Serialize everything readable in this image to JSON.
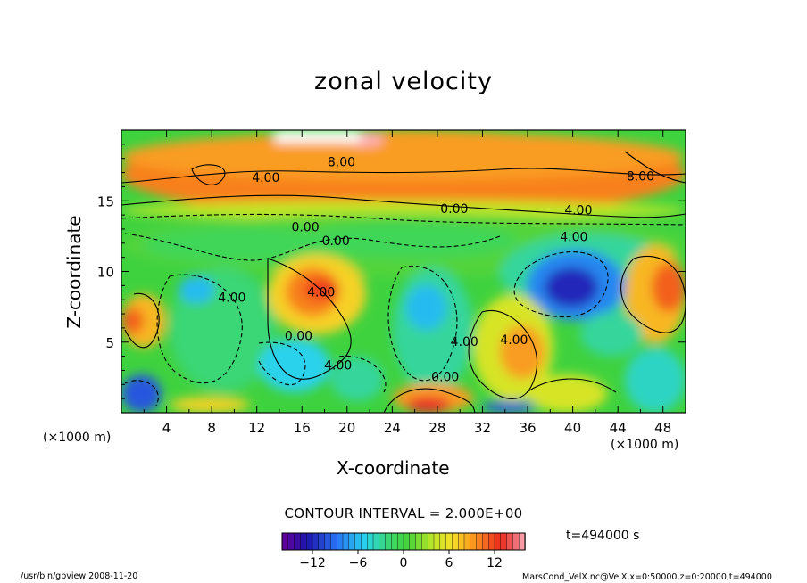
{
  "chart_data": {
    "type": "heatmap",
    "title": "zonal velocity",
    "xlabel": "X-coordinate",
    "ylabel": "Z-coordinate",
    "x_unit": "(×1000 m)",
    "y_unit": "(×1000 m)",
    "xlim": [
      0,
      50
    ],
    "ylim": [
      0,
      20
    ],
    "x_ticks": [
      4,
      8,
      12,
      16,
      20,
      24,
      28,
      32,
      36,
      40,
      44,
      48
    ],
    "y_ticks": [
      5,
      10,
      15
    ],
    "contour_interval_text": "CONTOUR INTERVAL = 2.000E+00",
    "time_label": "t=494000 s",
    "colorbar": {
      "min": -16,
      "max": 16,
      "tick_values": [
        -12,
        -6,
        0,
        6,
        12
      ],
      "tick_labels": [
        "−12",
        "−6",
        "0",
        "6",
        "12"
      ]
    },
    "contour_labels": [
      {
        "text": "8.00",
        "x": 19.5,
        "z": 17.7
      },
      {
        "text": "8.00",
        "x": 46.0,
        "z": 16.7
      },
      {
        "text": "4.00",
        "x": 12.8,
        "z": 16.6
      },
      {
        "text": "0.00",
        "x": 29.5,
        "z": 14.4
      },
      {
        "text": "4.00",
        "x": 40.5,
        "z": 14.3
      },
      {
        "text": "0.00",
        "x": 16.3,
        "z": 13.1
      },
      {
        "text": "4.00",
        "x": 40.1,
        "z": 12.4
      },
      {
        "text": "0.00",
        "x": 19.0,
        "z": 12.1
      },
      {
        "text": "4.00",
        "x": 17.7,
        "z": 8.5
      },
      {
        "text": "4.00",
        "x": 9.8,
        "z": 8.1
      },
      {
        "text": "0.00",
        "x": 15.7,
        "z": 5.4
      },
      {
        "text": "4.00",
        "x": 30.4,
        "z": 5.0
      },
      {
        "text": "4.00",
        "x": 34.8,
        "z": 5.1
      },
      {
        "text": "4.00",
        "x": 19.2,
        "z": 3.3
      },
      {
        "text": "0.00",
        "x": 28.7,
        "z": 2.5
      }
    ]
  },
  "footer": {
    "left": "/usr/bin/gpview   2008-11-20",
    "right": "MarsCond_VelX.nc@VelX,x=0:50000,z=0:20000,t=494000"
  }
}
